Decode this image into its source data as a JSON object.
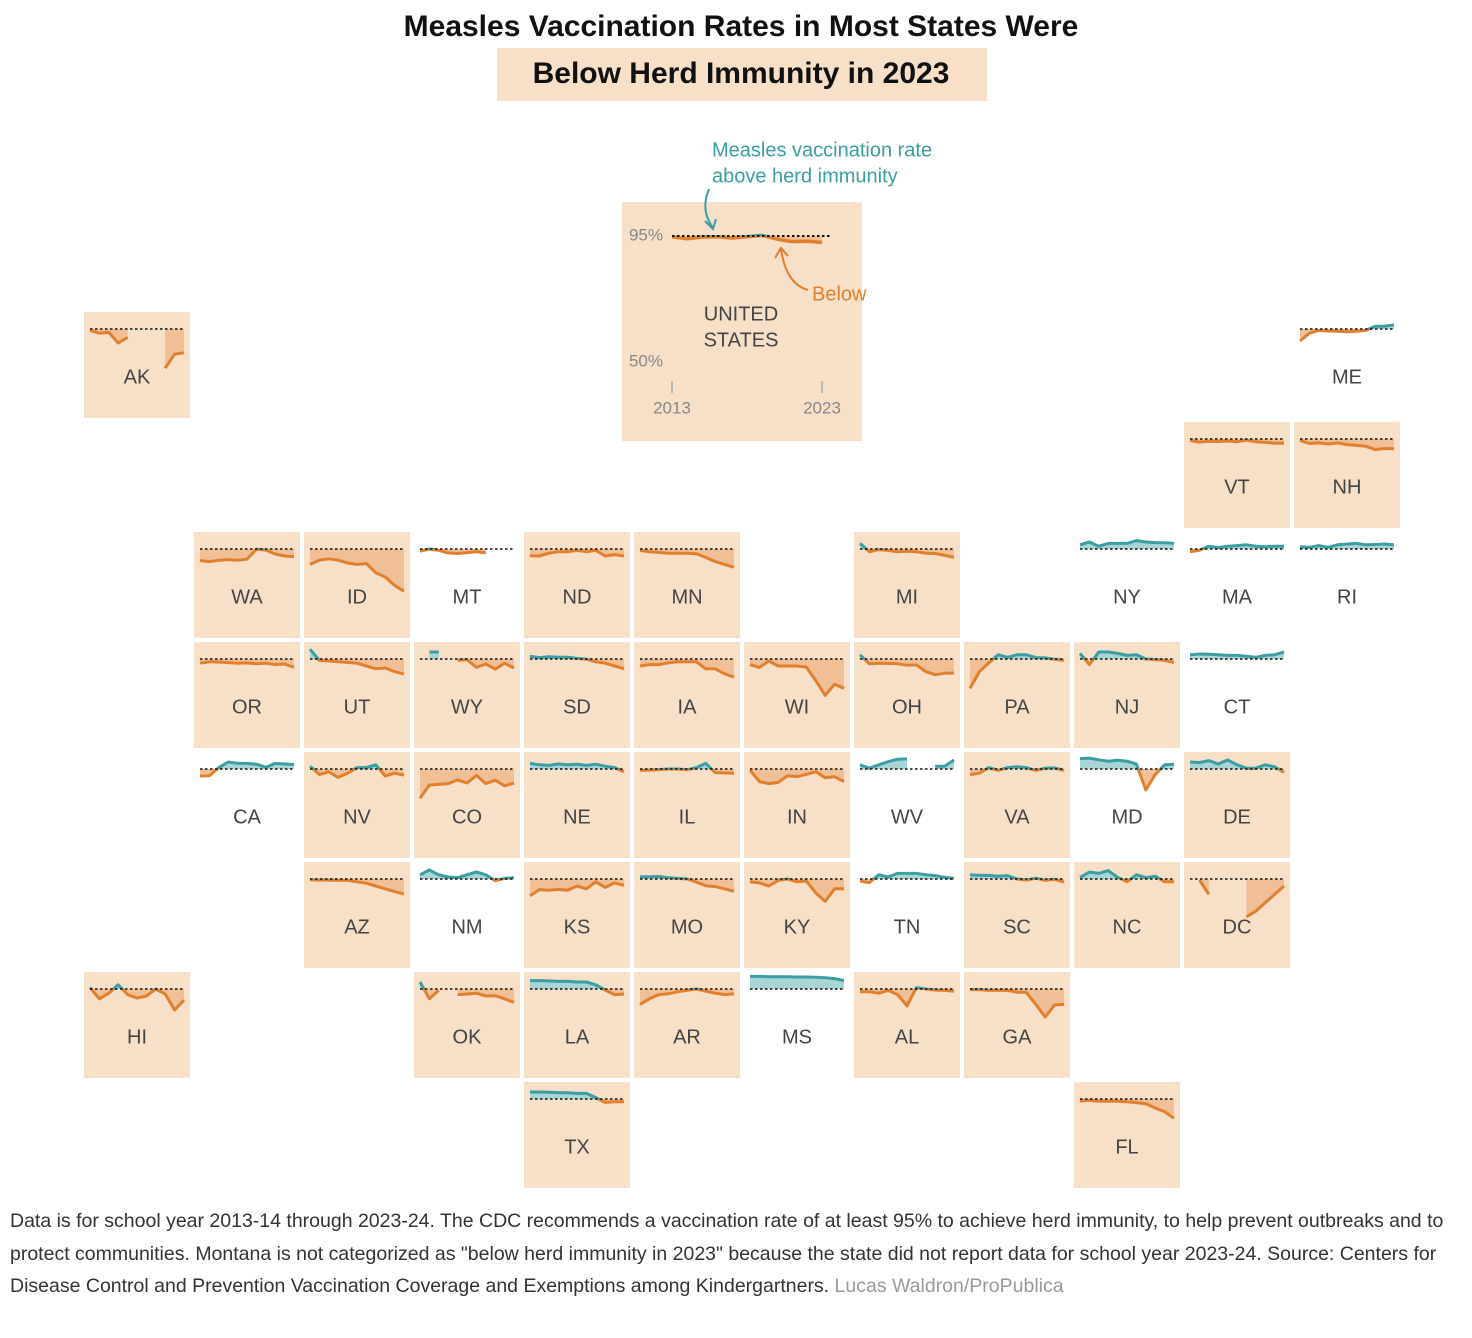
{
  "chart_data": {
    "type": "tile-map",
    "title": "Measles Vaccination Rates in Most States Were",
    "title_highlight": "Below Herd Immunity in 2023",
    "x": [
      2013,
      2014,
      2015,
      2016,
      2017,
      2018,
      2019,
      2020,
      2021,
      2022,
      2023
    ],
    "xlim": [
      2013,
      2023
    ],
    "xticks": [
      2013,
      2023
    ],
    "ylim": [
      50,
      95
    ],
    "yticks": [
      {
        "value": 95,
        "label": "95%"
      },
      {
        "value": 50,
        "label": "50%"
      }
    ],
    "threshold": 95,
    "colors": {
      "above": "#3a9ea3",
      "below": "#e0802e",
      "above_fill": "#a9d5d6",
      "below_fill": "#f0bf96",
      "shade": "#f7dfc8"
    },
    "annotations": {
      "above": [
        "Measles vaccination rate",
        "above herd immunity"
      ],
      "below": "Below"
    },
    "national": {
      "name_lines": [
        "UNITED",
        "STATES"
      ],
      "values": [
        94.7,
        94.0,
        94.6,
        94.7,
        94.3,
        94.7,
        95.2,
        93.9,
        93.0,
        93.1,
        92.7
      ]
    },
    "states": [
      {
        "name": "AK",
        "values": [
          94.5,
          93.5,
          93.8,
          90,
          92,
          null,
          null,
          null,
          81,
          86,
          86.5
        ]
      },
      {
        "name": "ME",
        "values": [
          90.7,
          93.5,
          94.5,
          94.3,
          94.2,
          94.0,
          94.2,
          94.5,
          96,
          96,
          96.5
        ]
      },
      {
        "name": "VT",
        "values": [
          94.5,
          93.9,
          94.2,
          94.1,
          94.3,
          94.0,
          94.6,
          94.0,
          93.8,
          93.5,
          93.5
        ]
      },
      {
        "name": "NH",
        "values": [
          94.5,
          93.4,
          93.6,
          93.2,
          93.6,
          93.0,
          92.7,
          92.4,
          91.2,
          91.6,
          91.5
        ]
      },
      {
        "name": "WA",
        "values": [
          90.9,
          90.5,
          91.0,
          91.2,
          91.0,
          91.4,
          94.9,
          94.6,
          93.2,
          92.5,
          92.3
        ]
      },
      {
        "name": "ID",
        "values": [
          89.5,
          91,
          91.5,
          91,
          90,
          89.5,
          89.8,
          86.5,
          85,
          82,
          79.9
        ]
      },
      {
        "name": "MT",
        "values": [
          94.2,
          95.0,
          94.5,
          93.6,
          93.4,
          93.7,
          94.0,
          93.6,
          null,
          null,
          null
        ]
      },
      {
        "name": "ND",
        "values": [
          92.6,
          92.5,
          93.5,
          94.0,
          94.0,
          94.5,
          94.0,
          94.5,
          92.5,
          93.0,
          92.5
        ]
      },
      {
        "name": "MN",
        "values": [
          94.5,
          94.0,
          93.8,
          93.5,
          93.5,
          93.5,
          93.3,
          92.0,
          90.5,
          89.5,
          88.5
        ]
      },
      {
        "name": "MI",
        "values": [
          97,
          94,
          94.8,
          94.5,
          94,
          94.2,
          94,
          93.5,
          93.4,
          92.7,
          92.0
        ]
      },
      {
        "name": "NY",
        "values": [
          96.5,
          97.5,
          96,
          97,
          97,
          97,
          98,
          97.5,
          97.3,
          97.2,
          97.0
        ]
      },
      {
        "name": "MA",
        "values": [
          94,
          94.5,
          96,
          95.5,
          96,
          96.2,
          96.5,
          96,
          95.8,
          96,
          96
        ]
      },
      {
        "name": "RI",
        "values": [
          95.8,
          95.6,
          96.2,
          95.6,
          96.5,
          96.8,
          97,
          96.5,
          96.6,
          96.8,
          96.5
        ]
      },
      {
        "name": "OR",
        "values": [
          93.5,
          94,
          93.9,
          93.7,
          93.5,
          93.6,
          93.3,
          93.5,
          93.0,
          93.2,
          92.0
        ]
      },
      {
        "name": "UT",
        "values": [
          98.5,
          94.5,
          94.3,
          94,
          93.8,
          93.5,
          92.5,
          91.5,
          91.8,
          90.5,
          89.6
        ]
      },
      {
        "name": "WY",
        "values": [
          null,
          97.5,
          97.5,
          null,
          94.5,
          94.8,
          92,
          93.2,
          91.4,
          93.5,
          91.8
        ]
      },
      {
        "name": "SD",
        "values": [
          96,
          95.5,
          95.8,
          95.6,
          95.6,
          95.2,
          94.9,
          94.0,
          93.5,
          92.5,
          91.5
        ]
      },
      {
        "name": "IA",
        "values": [
          92.5,
          93.0,
          93.0,
          93.6,
          94.0,
          94.0,
          94.0,
          91.5,
          91.5,
          89.7,
          88.5
        ]
      },
      {
        "name": "WI",
        "values": [
          93,
          92,
          94.3,
          92.5,
          92.5,
          92.5,
          92.1,
          87.3,
          82,
          86,
          84.5
        ]
      },
      {
        "name": "OH",
        "values": [
          96.5,
          93.3,
          93.5,
          93.4,
          93.3,
          92.8,
          92.9,
          90.5,
          89.4,
          89.9,
          90.0
        ]
      },
      {
        "name": "PA",
        "values": [
          84.5,
          90.5,
          93.6,
          96.5,
          95.6,
          96.5,
          96.5,
          95.5,
          95.4,
          94.9,
          94.5
        ]
      },
      {
        "name": "NJ",
        "values": [
          97,
          93,
          97.5,
          97.5,
          97,
          96.3,
          96.5,
          95,
          94.8,
          94.5,
          93.7
        ]
      },
      {
        "name": "CT",
        "values": [
          96.5,
          96.8,
          96.7,
          96.5,
          96.3,
          96.3,
          96.0,
          95.6,
          96.3,
          96.5,
          97.5
        ]
      },
      {
        "name": "CA",
        "values": [
          92.5,
          92.6,
          95.5,
          97.5,
          97.0,
          97.0,
          96.7,
          95.6,
          97,
          96.8,
          96.6
        ]
      },
      {
        "name": "NV",
        "values": [
          96,
          93,
          94,
          92,
          93.5,
          95.5,
          95.5,
          96.5,
          92.5,
          93.5,
          92.8
        ]
      },
      {
        "name": "CO",
        "values": [
          84.5,
          89.3,
          89.5,
          89.8,
          91.1,
          90,
          92.7,
          89.8,
          91.0,
          89.0,
          90.0
        ]
      },
      {
        "name": "NE",
        "values": [
          97,
          96.5,
          96.3,
          96.8,
          96.5,
          96.7,
          96.3,
          96.7,
          96.0,
          95.5,
          94.0
        ]
      },
      {
        "name": "IL",
        "values": [
          94.5,
          94.6,
          94.8,
          95.0,
          95.0,
          94.7,
          95.5,
          97.0,
          93.7,
          93.6,
          93.5
        ]
      },
      {
        "name": "IN",
        "values": [
          94.6,
          90.5,
          89.8,
          90.2,
          92.6,
          92.3,
          93.1,
          94.0,
          91.9,
          92.2,
          90.5
        ]
      },
      {
        "name": "WV",
        "values": [
          96.5,
          95.3,
          96.5,
          97.6,
          98.5,
          98.6,
          null,
          null,
          96,
          96,
          98.2
        ]
      },
      {
        "name": "VA",
        "values": [
          93,
          93.5,
          95.5,
          94.5,
          95.5,
          95.8,
          95.5,
          94.5,
          95.3,
          95.4,
          94.5
        ]
      },
      {
        "name": "MD",
        "values": [
          98.7,
          98.9,
          98.3,
          97.8,
          98.1,
          97.8,
          96.8,
          87.5,
          93,
          96.5,
          96.7
        ]
      },
      {
        "name": "DE",
        "values": [
          97.5,
          97.3,
          98,
          96.8,
          98.2,
          96.5,
          95.3,
          95.3,
          96.5,
          95.8,
          93.8
        ]
      },
      {
        "name": "AZ",
        "values": [
          94.7,
          94.6,
          94.6,
          94.5,
          94.5,
          94.0,
          93.5,
          92.5,
          91.5,
          90.5,
          89.6
        ]
      },
      {
        "name": "NM",
        "values": [
          96.5,
          98.2,
          96.5,
          95.7,
          95.5,
          96.5,
          97.5,
          96.5,
          94.4,
          95.2,
          95.5
        ]
      },
      {
        "name": "KS",
        "values": [
          89,
          91.2,
          91.0,
          91.3,
          91,
          92.5,
          91.5,
          94,
          92,
          93.6,
          92.7
        ]
      },
      {
        "name": "MO",
        "values": [
          95.8,
          95.8,
          95.9,
          95.5,
          95.2,
          95.0,
          93.9,
          92.6,
          92.3,
          91.5,
          90.6
        ]
      },
      {
        "name": "KY",
        "values": [
          94,
          93.6,
          92.5,
          94.5,
          95,
          94,
          94.3,
          90,
          87,
          91.5,
          91.5
        ]
      },
      {
        "name": "TN",
        "values": [
          94.2,
          93.7,
          96.5,
          95.7,
          97,
          97,
          97,
          96.5,
          96.2,
          95.6,
          95.2
        ]
      },
      {
        "name": "SC",
        "values": [
          96.5,
          96.3,
          96.3,
          96.0,
          96.2,
          95.0,
          94.6,
          95.3,
          94.5,
          94.9,
          93.9
        ]
      },
      {
        "name": "NC",
        "values": [
          95.5,
          97.5,
          97,
          98,
          95.6,
          94,
          96.5,
          95.5,
          96.0,
          94.0,
          94.0
        ]
      },
      {
        "name": "DC",
        "values": [
          null,
          94.7,
          89.5,
          null,
          null,
          null,
          81.5,
          83.5,
          86.5,
          89.5,
          92.5
        ]
      },
      {
        "name": "HI",
        "values": [
          95.5,
          91.5,
          93.5,
          96.5,
          93,
          91.8,
          92.5,
          95,
          93.2,
          87.5,
          91
        ]
      },
      {
        "name": "OK",
        "values": [
          97.5,
          91.5,
          94.5,
          null,
          93.0,
          93.2,
          93.5,
          92.5,
          92.6,
          91.5,
          90.2
        ]
      },
      {
        "name": "LA",
        "values": [
          98,
          98,
          97.9,
          97.7,
          97.8,
          97.5,
          97.5,
          96.5,
          94.6,
          93.0,
          93.2
        ]
      },
      {
        "name": "AR",
        "values": [
          89.5,
          91.5,
          93.0,
          93.3,
          94,
          94.5,
          95,
          94.2,
          93.5,
          93.0,
          93.3
        ]
      },
      {
        "name": "MS",
        "values": [
          99.5,
          99.5,
          99.4,
          99.4,
          99.4,
          99.3,
          99.3,
          99.2,
          99.0,
          98.7,
          98.0
        ]
      },
      {
        "name": "AL",
        "values": [
          94,
          94,
          93.5,
          94.5,
          93,
          89,
          95.5,
          95,
          94.6,
          94.5,
          94.2
        ]
      },
      {
        "name": "GA",
        "values": [
          94.8,
          94.8,
          94.5,
          94.5,
          94.5,
          93.9,
          93.8,
          89.5,
          85,
          89.3,
          89.5
        ]
      },
      {
        "name": "TX",
        "values": [
          97.5,
          97.5,
          97.4,
          97.3,
          97.2,
          97.0,
          97.0,
          95.5,
          93.8,
          94.0,
          94.0
        ]
      },
      {
        "name": "FL",
        "values": [
          94.3,
          94.5,
          94.2,
          94.2,
          94.2,
          94.0,
          93.7,
          93.3,
          91.8,
          90.5,
          88.1
        ]
      }
    ],
    "footnote": "Data is for school year 2013-14 through 2023-24. The CDC recommends a vaccination rate of at least 95% to achieve herd immunity, to help prevent outbreaks and to protect communities. Montana is not categorized as \"below herd immunity in 2023\" because the state did not report data for school year 2023-24. Source: Centers for Disease Control and Prevention Vaccination Coverage and Exemptions among Kindergartners.",
    "credit": "Lucas Waldron/ProPublica"
  }
}
